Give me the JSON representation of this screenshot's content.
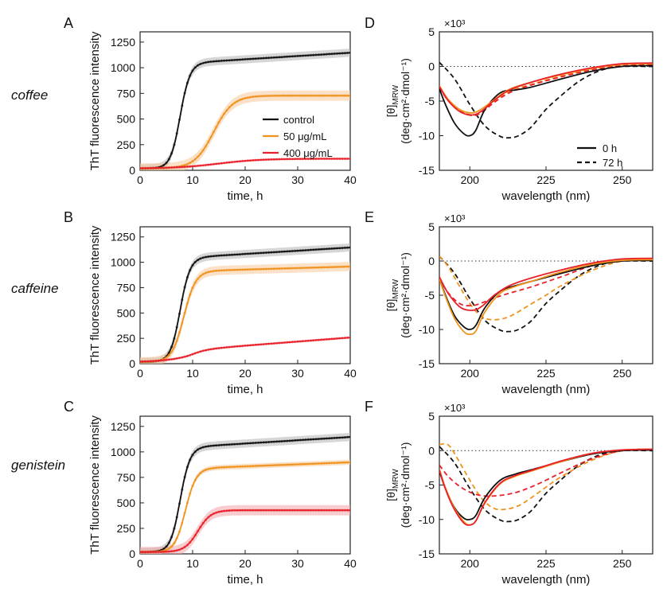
{
  "row_labels": [
    "coffee",
    "caffeine",
    "genistein"
  ],
  "colors": {
    "control": "#111111",
    "50": "#f0931e",
    "400": "#e8202a",
    "band_control": "#b5b5b5",
    "band_50": "#f6c89a",
    "band_400": "#f2a4a8"
  },
  "chart_data": [
    {
      "panel": "A",
      "type": "line",
      "xlabel": "time, h",
      "ylabel": "ThT fluorescence intensity",
      "xlim": [
        0,
        40
      ],
      "ylim": [
        0,
        1350
      ],
      "xticks": [
        "0",
        "10",
        "20",
        "30",
        "40"
      ],
      "yticks": [
        "0",
        "250",
        "500",
        "750",
        "1000",
        "1250"
      ],
      "legend": {
        "position": "center-right",
        "entries": [
          "control",
          "50 μg/mL",
          "400 μg/mL"
        ]
      },
      "series": [
        {
          "name": "control",
          "params": {
            "t": 7.6,
            "k": 1.1,
            "a": 1000,
            "b": 3.2
          },
          "band": 40
        },
        {
          "name": "50 μg/mL",
          "params": {
            "t": 14.0,
            "k": 0.55,
            "a": 710,
            "b": 0
          },
          "band": 50
        },
        {
          "name": "400 μg/mL",
          "params": {
            "t": 15.0,
            "k": 0.25,
            "a": 95,
            "b": 0
          },
          "band": 6
        }
      ]
    },
    {
      "panel": "B",
      "type": "line",
      "xlabel": "time, h",
      "ylabel": "ThT fluorescence intensity",
      "xlim": [
        0,
        40
      ],
      "ylim": [
        0,
        1350
      ],
      "xticks": [
        "0",
        "10",
        "20",
        "30",
        "40"
      ],
      "yticks": [
        "0",
        "250",
        "500",
        "750",
        "1000",
        "1250"
      ],
      "series": [
        {
          "name": "control",
          "params": {
            "t": 7.6,
            "k": 1.1,
            "a": 1000,
            "b": 3.2
          },
          "band": 40
        },
        {
          "name": "50 μg/mL",
          "params": {
            "t": 8.3,
            "k": 0.9,
            "a": 880,
            "b": 1.5
          },
          "band": 45
        },
        {
          "name": "400 μg/mL",
          "params": {
            "t": 8.0,
            "k": 0.4,
            "a": 80,
            "b": 4.0
          },
          "band": 8
        }
      ]
    },
    {
      "panel": "C",
      "type": "line",
      "xlabel": "time, h",
      "ylabel": "ThT fluorescence intensity",
      "xlim": [
        0,
        40
      ],
      "ylim": [
        0,
        1350
      ],
      "xticks": [
        "0",
        "10",
        "20",
        "30",
        "40"
      ],
      "yticks": [
        "0",
        "250",
        "500",
        "750",
        "1000",
        "1250"
      ],
      "series": [
        {
          "name": "control",
          "params": {
            "t": 7.6,
            "k": 1.1,
            "a": 1000,
            "b": 3.2
          },
          "band": 40
        },
        {
          "name": "50 μg/mL",
          "params": {
            "t": 8.6,
            "k": 1.0,
            "a": 800,
            "b": 2.0
          },
          "band": 25
        },
        {
          "name": "400 μg/mL",
          "params": {
            "t": 11.0,
            "k": 0.8,
            "a": 410,
            "b": 0
          },
          "band": 50
        }
      ]
    },
    {
      "panel": "D",
      "type": "line",
      "xlabel": "wavelength (nm)",
      "ylabel_main": "[θ]",
      "ylabel_sub": "MRW",
      "ylabel_units": "(deg·cm²·dmol⁻¹)",
      "exponent": "×10³",
      "xlim": [
        190,
        260
      ],
      "ylim": [
        -15,
        5
      ],
      "xticks": [
        "200",
        "225",
        "250"
      ],
      "yticks": [
        "-15",
        "-10",
        "-5",
        "0",
        "5"
      ],
      "legend": {
        "position": "bottom-right",
        "entries": [
          "0 h",
          "72 h"
        ]
      },
      "series": [
        {
          "name": "control 0 h",
          "style": "solid",
          "x": [
            190,
            192,
            195,
            198,
            200,
            202,
            205,
            210,
            215,
            220,
            230,
            240,
            250,
            260
          ],
          "y": [
            -3.2,
            -5.5,
            -8.2,
            -9.7,
            -10.0,
            -9.2,
            -6.2,
            -3.8,
            -3.4,
            -3.0,
            -1.8,
            -0.7,
            0.0,
            0.1
          ]
        },
        {
          "name": "control 72 h",
          "style": "dashed",
          "x": [
            190,
            195,
            200,
            205,
            210,
            213,
            216,
            220,
            225,
            230,
            235,
            240,
            245,
            250,
            260
          ],
          "y": [
            0.6,
            -1.8,
            -5.5,
            -8.6,
            -10.1,
            -10.3,
            -10.0,
            -8.8,
            -6.2,
            -4.2,
            -2.4,
            -1.1,
            -0.3,
            0.0,
            0.0
          ]
        },
        {
          "name": "50 μg/mL 0 h",
          "style": "solid",
          "x": [
            190,
            193,
            197,
            201,
            204,
            208,
            213,
            220,
            230,
            240,
            250,
            260
          ],
          "y": [
            -2.8,
            -4.8,
            -6.3,
            -6.7,
            -6.1,
            -4.8,
            -3.3,
            -2.3,
            -1.2,
            -0.3,
            0.3,
            0.4
          ]
        },
        {
          "name": "50 μg/mL 72 h",
          "style": "dashed",
          "x": [
            190,
            193,
            197,
            201,
            204,
            208,
            213,
            220,
            230,
            240,
            250,
            260
          ],
          "y": [
            -2.8,
            -4.9,
            -6.5,
            -7.0,
            -6.5,
            -5.0,
            -3.6,
            -2.6,
            -1.4,
            -0.4,
            0.2,
            0.3
          ]
        },
        {
          "name": "400 μg/mL 0 h",
          "style": "solid",
          "x": [
            190,
            193,
            197,
            201,
            204,
            208,
            213,
            220,
            230,
            240,
            250,
            260
          ],
          "y": [
            -2.9,
            -5.0,
            -6.6,
            -7.0,
            -6.4,
            -4.9,
            -3.4,
            -2.3,
            -1.1,
            -0.2,
            0.4,
            0.5
          ]
        },
        {
          "name": "400 μg/mL 72 h",
          "style": "dashed",
          "x": [
            190,
            193,
            197,
            201,
            204,
            208,
            213,
            220,
            230,
            240,
            250,
            260
          ],
          "y": [
            -3.0,
            -5.0,
            -6.5,
            -7.1,
            -6.6,
            -5.2,
            -3.8,
            -2.7,
            -1.5,
            -0.5,
            0.1,
            0.3
          ]
        }
      ]
    },
    {
      "panel": "E",
      "type": "line",
      "xlabel": "wavelength (nm)",
      "ylabel_main": "[θ]",
      "ylabel_sub": "MRW",
      "ylabel_units": "(deg·cm²·dmol⁻¹)",
      "exponent": "×10³",
      "xlim": [
        190,
        260
      ],
      "ylim": [
        -15,
        5
      ],
      "xticks": [
        "200",
        "225",
        "250"
      ],
      "yticks": [
        "-15",
        "-10",
        "-5",
        "0",
        "5"
      ],
      "series": [
        {
          "name": "control 0 h",
          "style": "solid",
          "x": [
            190,
            192,
            195,
            198,
            200,
            202,
            205,
            210,
            215,
            220,
            230,
            240,
            250,
            260
          ],
          "y": [
            -2.5,
            -5.0,
            -8.0,
            -9.6,
            -10.0,
            -9.4,
            -6.8,
            -4.4,
            -3.6,
            -3.0,
            -1.8,
            -0.7,
            0.0,
            0.1
          ]
        },
        {
          "name": "control 72 h",
          "style": "dashed",
          "x": [
            190,
            195,
            200,
            205,
            210,
            213,
            216,
            220,
            225,
            230,
            235,
            240,
            245,
            250,
            260
          ],
          "y": [
            0.7,
            -1.8,
            -5.5,
            -8.7,
            -10.1,
            -10.3,
            -10.0,
            -8.8,
            -6.2,
            -4.2,
            -2.4,
            -1.1,
            -0.3,
            0.0,
            0.0
          ]
        },
        {
          "name": "50 μg/mL 0 h",
          "style": "solid",
          "x": [
            190,
            192,
            195,
            198,
            200,
            202,
            205,
            210,
            215,
            220,
            230,
            240,
            250,
            260
          ],
          "y": [
            -2.6,
            -5.2,
            -8.4,
            -10.3,
            -10.7,
            -10.2,
            -7.4,
            -4.7,
            -3.7,
            -3.0,
            -1.6,
            -0.5,
            0.1,
            0.2
          ]
        },
        {
          "name": "50 μg/mL 72 h",
          "style": "dashed",
          "x": [
            190,
            193,
            197,
            200,
            203,
            206,
            210,
            214,
            220,
            225,
            230,
            240,
            250,
            260
          ],
          "y": [
            0.7,
            -0.9,
            -4.0,
            -6.2,
            -7.8,
            -8.5,
            -8.5,
            -7.9,
            -6.3,
            -5.0,
            -3.6,
            -1.4,
            0.0,
            0.2
          ]
        },
        {
          "name": "400 μg/mL 0 h",
          "style": "solid",
          "x": [
            190,
            193,
            197,
            201,
            204,
            208,
            213,
            220,
            230,
            240,
            250,
            260
          ],
          "y": [
            -2.3,
            -4.8,
            -6.8,
            -7.2,
            -6.6,
            -5.0,
            -3.6,
            -2.5,
            -1.3,
            -0.3,
            0.3,
            0.4
          ]
        },
        {
          "name": "400 μg/mL 72 h",
          "style": "dashed",
          "x": [
            190,
            193,
            197,
            201,
            204,
            208,
            213,
            220,
            230,
            240,
            250,
            260
          ],
          "y": [
            -2.5,
            -4.7,
            -6.3,
            -6.5,
            -6.1,
            -5.4,
            -4.7,
            -3.8,
            -2.3,
            -0.7,
            0.1,
            0.3
          ]
        }
      ]
    },
    {
      "panel": "F",
      "type": "line",
      "xlabel": "wavelength (nm)",
      "ylabel_main": "[θ]",
      "ylabel_sub": "MRW",
      "ylabel_units": "(deg·cm²·dmol⁻¹)",
      "exponent": "×10³",
      "xlim": [
        190,
        260
      ],
      "ylim": [
        -15,
        5
      ],
      "xticks": [
        "200",
        "225",
        "250"
      ],
      "yticks": [
        "-15",
        "-10",
        "-5",
        "0",
        "5"
      ],
      "series": [
        {
          "name": "control 0 h",
          "style": "solid",
          "x": [
            190,
            192,
            195,
            198,
            200,
            202,
            205,
            210,
            215,
            220,
            230,
            240,
            250,
            260
          ],
          "y": [
            -3.0,
            -5.5,
            -8.3,
            -9.8,
            -10.0,
            -9.4,
            -6.8,
            -4.3,
            -3.4,
            -2.8,
            -1.6,
            -0.5,
            0.0,
            0.1
          ]
        },
        {
          "name": "control 72 h",
          "style": "dashed",
          "x": [
            190,
            195,
            200,
            205,
            210,
            213,
            216,
            220,
            225,
            230,
            235,
            240,
            245,
            250,
            260
          ],
          "y": [
            0.6,
            -1.8,
            -5.5,
            -8.6,
            -10.1,
            -10.3,
            -10.0,
            -8.8,
            -6.2,
            -4.2,
            -2.4,
            -1.1,
            -0.3,
            0.0,
            0.0
          ]
        },
        {
          "name": "50 μg/mL 0 h",
          "style": "solid",
          "x": [
            190,
            192,
            195,
            198,
            200,
            202,
            205,
            210,
            215,
            220,
            230,
            240,
            250,
            260
          ],
          "y": [
            -2.7,
            -5.4,
            -8.4,
            -10.3,
            -10.8,
            -10.2,
            -7.6,
            -4.8,
            -3.7,
            -3.0,
            -1.6,
            -0.4,
            0.1,
            0.2
          ]
        },
        {
          "name": "50 μg/mL 72 h",
          "style": "dashed",
          "x": [
            190,
            193,
            196,
            200,
            204,
            208,
            212,
            216,
            220,
            225,
            230,
            240,
            250,
            260
          ],
          "y": [
            0.9,
            0.8,
            -1.2,
            -4.3,
            -7.0,
            -8.4,
            -8.5,
            -8.0,
            -6.9,
            -5.3,
            -3.8,
            -1.4,
            0.0,
            0.2
          ]
        },
        {
          "name": "400 μg/mL 0 h",
          "style": "solid",
          "x": [
            190,
            192,
            195,
            198,
            200,
            202,
            205,
            210,
            215,
            220,
            230,
            240,
            250,
            260
          ],
          "y": [
            -2.8,
            -5.6,
            -8.6,
            -10.5,
            -10.8,
            -10.2,
            -7.5,
            -4.7,
            -3.6,
            -2.9,
            -1.5,
            -0.4,
            0.1,
            0.2
          ]
        },
        {
          "name": "400 μg/mL 72 h",
          "style": "dashed",
          "x": [
            190,
            193,
            197,
            201,
            205,
            210,
            215,
            220,
            225,
            230,
            240,
            250,
            260
          ],
          "y": [
            -2.1,
            -3.8,
            -5.3,
            -6.2,
            -6.6,
            -6.5,
            -6.1,
            -5.3,
            -4.3,
            -3.2,
            -1.2,
            0.0,
            0.2
          ]
        }
      ]
    }
  ]
}
